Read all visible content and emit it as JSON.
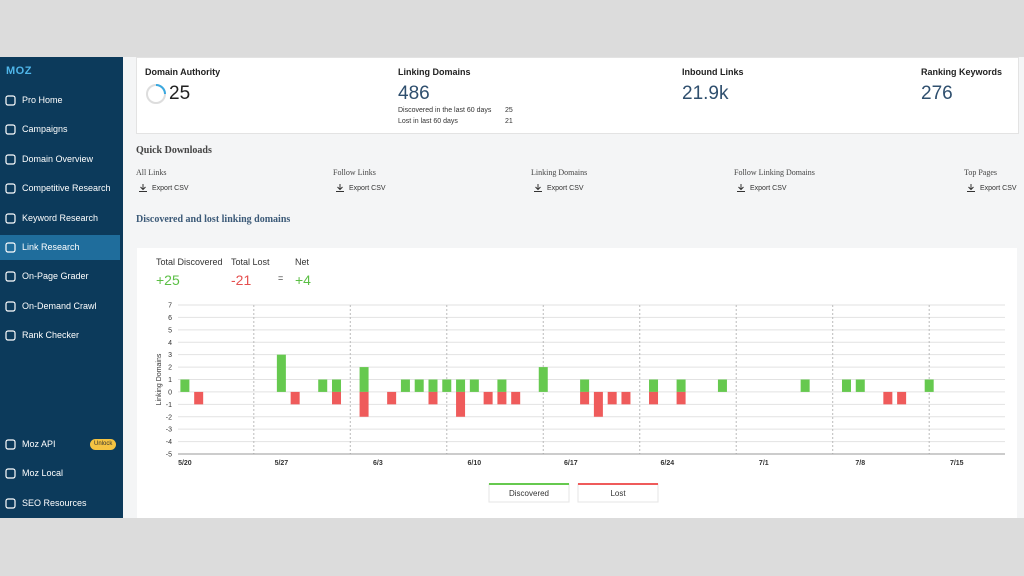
{
  "sidebar": {
    "logo": "MOZ",
    "items": [
      "Pro Home",
      "Campaigns",
      "Domain Overview",
      "Competitive Research",
      "Keyword Research",
      "Link Research",
      "On-Page Grader",
      "On-Demand Crawl",
      "Rank Checker"
    ],
    "bottom_items": [
      "Moz API",
      "Moz Local",
      "SEO Resources"
    ],
    "badge": "Unlock"
  },
  "metrics": [
    {
      "label": "Domain Authority",
      "value": "25"
    },
    {
      "label": "Linking Domains",
      "value": "486"
    },
    {
      "label": "Inbound Links",
      "value": "21.9k"
    },
    {
      "label": "Ranking Keywords",
      "value": "276"
    }
  ],
  "linking_details": [
    {
      "label": "Discovered in the last 60 days",
      "value": "25"
    },
    {
      "label": "Lost in last 60 days",
      "value": "21"
    }
  ],
  "quick_downloads": {
    "title": "Quick Downloads",
    "items": [
      {
        "label": "All Links",
        "action": "Export CSV"
      },
      {
        "label": "Follow Links",
        "action": "Export CSV"
      },
      {
        "label": "Linking Domains",
        "action": "Export CSV"
      },
      {
        "label": "Follow Linking Domains",
        "action": "Export CSV"
      },
      {
        "label": "Top Pages",
        "action": "Export CSV"
      }
    ]
  },
  "section_title": "Discovered and lost linking domains",
  "summary": {
    "discovered": {
      "label": "Total Discovered",
      "value": "+25"
    },
    "lost": {
      "label": "Total Lost",
      "value": "-21"
    },
    "equals": "=",
    "net": {
      "label": "Net",
      "value": "+4"
    }
  },
  "chart_data": {
    "type": "bar",
    "y_label": "Linking Domains",
    "categories": [
      "5/20",
      null,
      null,
      null,
      null,
      null,
      null,
      "5/27",
      null,
      null,
      null,
      null,
      null,
      null,
      "6/3",
      null,
      null,
      null,
      null,
      null,
      null,
      "6/10",
      null,
      null,
      null,
      null,
      null,
      null,
      "6/17",
      null,
      null,
      null,
      null,
      null,
      null,
      "6/24",
      null,
      null,
      null,
      null,
      null,
      null,
      "7/1",
      null,
      null,
      null,
      null,
      null,
      null,
      "7/8",
      null,
      null,
      null,
      null,
      null,
      null,
      "7/15",
      null,
      null,
      null
    ],
    "series": [
      {
        "name": "Discovered",
        "color": "#66c94f",
        "values": [
          1,
          0,
          0,
          0,
          0,
          0,
          0,
          3,
          0,
          0,
          1,
          1,
          0,
          2,
          0,
          0,
          1,
          1,
          1,
          1,
          1,
          1,
          0,
          1,
          0,
          0,
          2,
          0,
          0,
          1,
          0,
          0,
          0,
          0,
          1,
          0,
          1,
          0,
          0,
          1,
          0,
          0,
          0,
          0,
          0,
          1,
          0,
          0,
          1,
          1,
          0,
          0,
          0,
          0,
          1,
          0,
          0,
          0,
          0,
          0
        ]
      },
      {
        "name": "Lost",
        "color": "#ef5b5b",
        "values": [
          0,
          -1,
          0,
          0,
          0,
          0,
          0,
          0,
          -1,
          0,
          0,
          -1,
          0,
          -2,
          0,
          -1,
          0,
          0,
          -1,
          0,
          -2,
          0,
          -1,
          -1,
          -1,
          0,
          0,
          0,
          0,
          -1,
          -2,
          -1,
          -1,
          0,
          -1,
          0,
          -1,
          0,
          0,
          0,
          0,
          0,
          0,
          0,
          0,
          0,
          0,
          0,
          0,
          0,
          0,
          -1,
          -1,
          0,
          0,
          0,
          0,
          0,
          0,
          0
        ]
      }
    ],
    "ylim": [
      -5,
      7
    ],
    "yticks": [
      -5,
      -4,
      -3,
      -2,
      -1,
      0,
      1,
      2,
      3,
      4,
      5,
      6,
      7
    ],
    "grid": true
  }
}
